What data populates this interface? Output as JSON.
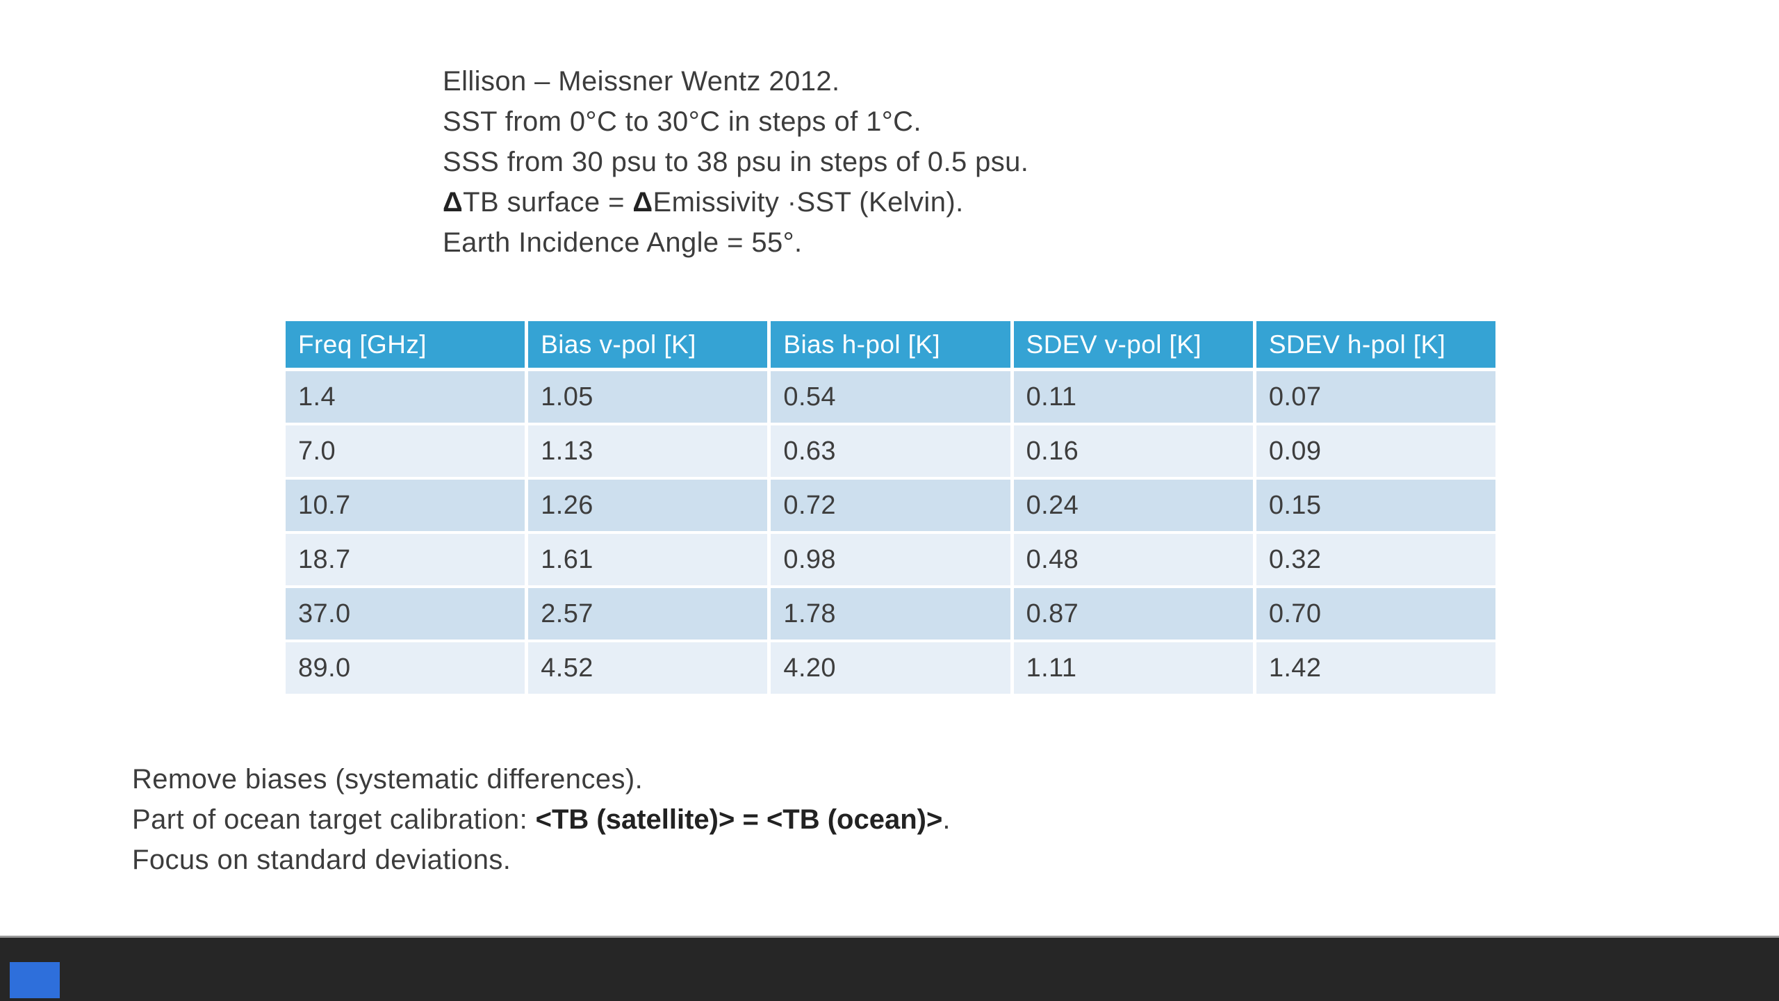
{
  "colors": {
    "header_bg": "#35a3d4",
    "header_text": "#ffffff",
    "row_dark": "#cddfee",
    "row_light": "#e7eff7",
    "body_text": "#3d3d3d",
    "text": "#3c3c3c",
    "footer_bar": "#262626",
    "accent_square": "#2e6fdb",
    "slide_bg": "#ffffff"
  },
  "top_block": {
    "line1": "Ellison – Meissner Wentz 2012.",
    "line2": "SST from 0°C to 30°C in steps of 1°C.",
    "line3": "SSS from 30 psu to 38 psu in steps of 0.5 psu.",
    "line4": {
      "d1": "Δ",
      "t1": "TB surface = ",
      "d2": "Δ",
      "t2": "Emissivity ·SST (Kelvin)."
    },
    "line5": "Earth Incidence Angle = 55°."
  },
  "table": {
    "headers": [
      "Freq [GHz]",
      "Bias v-pol [K]",
      "Bias h-pol [K]",
      "SDEV v-pol [K]",
      "SDEV h-pol [K]"
    ],
    "rows": [
      [
        "1.4",
        "1.05",
        "0.54",
        "0.11",
        "0.07"
      ],
      [
        "7.0",
        "1.13",
        "0.63",
        "0.16",
        "0.09"
      ],
      [
        "10.7",
        "1.26",
        "0.72",
        "0.24",
        "0.15"
      ],
      [
        "18.7",
        "1.61",
        "0.98",
        "0.48",
        "0.32"
      ],
      [
        "37.0",
        "2.57",
        "1.78",
        "0.87",
        "0.70"
      ],
      [
        "89.0",
        "4.52",
        "4.20",
        "1.11",
        "1.42"
      ]
    ]
  },
  "bottom_block": {
    "line1": "Remove biases (systematic differences).",
    "line2": {
      "t1": "Part of ocean target calibration: ",
      "b": "<TB (satellite)> = <TB (ocean)>",
      "t2": "."
    },
    "line3": "Focus on standard deviations."
  }
}
